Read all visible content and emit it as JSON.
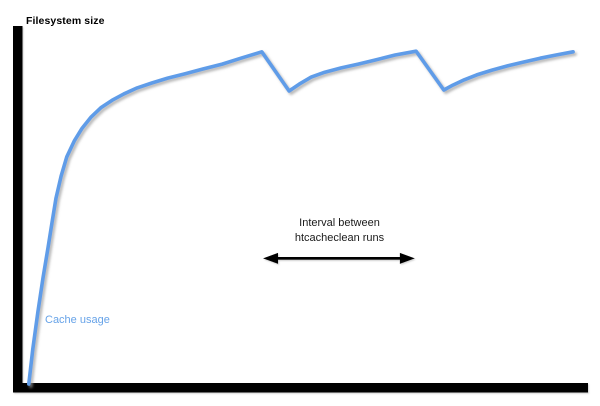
{
  "labels": {
    "filesystem_size": "Filesystem size",
    "cache_usage": "Cache usage",
    "interval_line1": "Interval between",
    "interval_line2": "htcacheclean runs"
  },
  "colors": {
    "cache_usage_blue": "#5f9ce8",
    "cache_usage_label_blue": "#67a3e8",
    "line_black": "#000000",
    "shadow_gray": "#999999",
    "background": "#ffffff"
  },
  "chart_data": {
    "type": "line",
    "title": "",
    "xlabel": "",
    "ylabel": "Filesystem size",
    "x_unit": "time (relative, 0-100)",
    "y_unit": "percent of filesystem size",
    "xlim": [
      0,
      100
    ],
    "ylim": [
      0,
      100
    ],
    "grid": false,
    "legend_position": "none",
    "filesystem_size_line_y": 100,
    "cache_limit_line_y": 83.7,
    "series": [
      {
        "name": "Cache usage",
        "points": [
          [
            1.2,
            0
          ],
          [
            1.9,
            10.0
          ],
          [
            2.8,
            20.6
          ],
          [
            3.7,
            30.3
          ],
          [
            4.6,
            39.1
          ],
          [
            5.3,
            46.3
          ],
          [
            6.0,
            53.1
          ],
          [
            6.9,
            59.4
          ],
          [
            7.9,
            64.9
          ],
          [
            9.2,
            69.4
          ],
          [
            10.6,
            73.1
          ],
          [
            12.2,
            76.3
          ],
          [
            13.9,
            78.9
          ],
          [
            15.9,
            81.1
          ],
          [
            18.0,
            82.9
          ],
          [
            20.3,
            84.6
          ],
          [
            22.9,
            86.0
          ],
          [
            25.7,
            87.4
          ],
          [
            28.7,
            88.6
          ],
          [
            31.9,
            90.0
          ],
          [
            35.3,
            91.4
          ],
          [
            38.6,
            93.1
          ],
          [
            42.3,
            94.9
          ],
          [
            47.1,
            83.7
          ],
          [
            48.9,
            85.7
          ],
          [
            51.0,
            87.7
          ],
          [
            53.4,
            89.1
          ],
          [
            56.3,
            90.3
          ],
          [
            59.3,
            91.4
          ],
          [
            62.4,
            92.6
          ],
          [
            65.8,
            94.0
          ],
          [
            69.5,
            95.1
          ],
          [
            74.4,
            84.0
          ],
          [
            76.0,
            85.4
          ],
          [
            78.0,
            86.9
          ],
          [
            80.2,
            88.3
          ],
          [
            82.9,
            89.7
          ],
          [
            85.7,
            90.9
          ],
          [
            88.5,
            92.0
          ],
          [
            91.4,
            93.1
          ],
          [
            94.2,
            94.0
          ],
          [
            97.2,
            94.9
          ]
        ]
      }
    ],
    "cleanup_run_markers": [
      {
        "x": 42.3,
        "top_y": 94.9
      },
      {
        "x": 69.5,
        "top_y": 95.1
      }
    ],
    "interval_annotation": {
      "text": "Interval between htcacheclean runs",
      "x_from": 42.3,
      "x_to": 69.5,
      "y": 35.9
    }
  }
}
